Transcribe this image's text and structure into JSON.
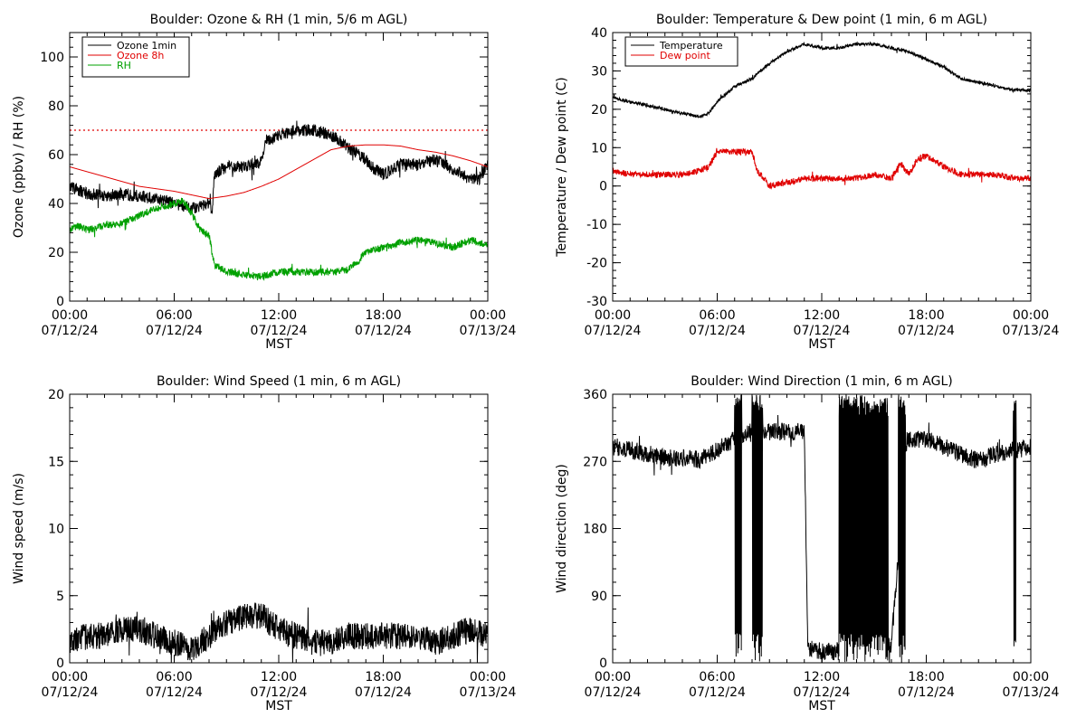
{
  "chart_data": [
    {
      "type": "line",
      "title": "Boulder: Ozone & RH (1 min, 5/6 m AGL)",
      "xlabel": "MST",
      "ylabel": "Ozone (ppbv) / RH (%)",
      "x_ticks": [
        [
          "00:00",
          "07/12/24"
        ],
        [
          "06:00",
          "07/12/24"
        ],
        [
          "12:00",
          "07/12/24"
        ],
        [
          "18:00",
          "07/12/24"
        ],
        [
          "00:00",
          "07/13/24"
        ]
      ],
      "xlim_hours": [
        0,
        24
      ],
      "ylim": [
        0,
        110
      ],
      "y_ticks": [
        0,
        20,
        40,
        60,
        80,
        100
      ],
      "legend_position": "top-left",
      "reference_line": {
        "y": 70,
        "color": "#e00000",
        "style": "dotted"
      },
      "series": [
        {
          "name": "Ozone 1min",
          "color": "#000000",
          "noise": 2.5,
          "points": [
            [
              0,
              47
            ],
            [
              1,
              44
            ],
            [
              2,
              43
            ],
            [
              3,
              44
            ],
            [
              4,
              43
            ],
            [
              5,
              42
            ],
            [
              6,
              40
            ],
            [
              7,
              38
            ],
            [
              8,
              40
            ],
            [
              8.2,
              37
            ],
            [
              8.3,
              52
            ],
            [
              9,
              55
            ],
            [
              10,
              55
            ],
            [
              11,
              57
            ],
            [
              11.3,
              66
            ],
            [
              12,
              68
            ],
            [
              13,
              70
            ],
            [
              14,
              70
            ],
            [
              15,
              68
            ],
            [
              16,
              63
            ],
            [
              17,
              58
            ],
            [
              17.5,
              54
            ],
            [
              18,
              52
            ],
            [
              19,
              56
            ],
            [
              20,
              56
            ],
            [
              21,
              58
            ],
            [
              22,
              54
            ],
            [
              23,
              50
            ],
            [
              23.5,
              50
            ],
            [
              24,
              56
            ]
          ]
        },
        {
          "name": "Ozone 8h",
          "color": "#e00000",
          "noise": 0,
          "points": [
            [
              0,
              55
            ],
            [
              1,
              53
            ],
            [
              2,
              51
            ],
            [
              3,
              49
            ],
            [
              4,
              47
            ],
            [
              5,
              46
            ],
            [
              6,
              45
            ],
            [
              7,
              43.5
            ],
            [
              8,
              42
            ],
            [
              9,
              43
            ],
            [
              10,
              44.5
            ],
            [
              11,
              47
            ],
            [
              12,
              50
            ],
            [
              13,
              54
            ],
            [
              14,
              58
            ],
            [
              15,
              62
            ],
            [
              16,
              63.5
            ],
            [
              17,
              64
            ],
            [
              18,
              64
            ],
            [
              19,
              63.5
            ],
            [
              20,
              62
            ],
            [
              21,
              61
            ],
            [
              22,
              59.5
            ],
            [
              23,
              57.5
            ],
            [
              24,
              55
            ]
          ]
        },
        {
          "name": "RH",
          "color": "#00a000",
          "noise": 1.5,
          "points": [
            [
              0,
              29
            ],
            [
              0.5,
              31
            ],
            [
              1,
              29
            ],
            [
              2,
              31
            ],
            [
              3,
              32
            ],
            [
              4,
              35
            ],
            [
              5,
              38
            ],
            [
              6,
              40
            ],
            [
              6.5,
              41
            ],
            [
              7,
              36
            ],
            [
              7.5,
              29
            ],
            [
              8,
              27
            ],
            [
              8.3,
              15
            ],
            [
              9,
              12
            ],
            [
              10,
              11
            ],
            [
              11,
              10
            ],
            [
              11.5,
              11
            ],
            [
              12,
              12
            ],
            [
              13,
              12
            ],
            [
              14,
              12
            ],
            [
              15,
              12
            ],
            [
              16,
              13
            ],
            [
              16.5,
              16
            ],
            [
              17,
              20
            ],
            [
              18,
              22
            ],
            [
              19,
              24
            ],
            [
              20,
              25
            ],
            [
              21,
              24
            ],
            [
              22,
              22
            ],
            [
              23,
              25
            ],
            [
              24,
              23
            ]
          ]
        }
      ]
    },
    {
      "type": "line",
      "title": "Boulder: Temperature & Dew point (1 min, 6 m AGL)",
      "xlabel": "MST",
      "ylabel": "Temperature / Dew point (C)",
      "x_ticks": [
        [
          "00:00",
          "07/12/24"
        ],
        [
          "06:00",
          "07/12/24"
        ],
        [
          "12:00",
          "07/12/24"
        ],
        [
          "18:00",
          "07/12/24"
        ],
        [
          "00:00",
          "07/13/24"
        ]
      ],
      "xlim_hours": [
        0,
        24
      ],
      "ylim": [
        -30,
        40
      ],
      "y_ticks": [
        -30,
        -20,
        -10,
        0,
        10,
        20,
        30,
        40
      ],
      "legend_position": "top-left",
      "series": [
        {
          "name": "Temperature",
          "color": "#000000",
          "noise": 0.4,
          "points": [
            [
              0,
              23
            ],
            [
              1,
              22
            ],
            [
              2,
              21
            ],
            [
              3,
              20
            ],
            [
              4,
              19
            ],
            [
              5,
              18
            ],
            [
              5.5,
              19
            ],
            [
              6,
              22
            ],
            [
              7,
              26
            ],
            [
              8,
              28
            ],
            [
              9,
              32
            ],
            [
              10,
              35
            ],
            [
              11,
              37
            ],
            [
              12,
              36
            ],
            [
              13,
              36
            ],
            [
              14,
              37
            ],
            [
              15,
              37
            ],
            [
              16,
              36
            ],
            [
              17,
              35
            ],
            [
              18,
              33
            ],
            [
              19,
              31
            ],
            [
              20,
              28
            ],
            [
              21,
              27
            ],
            [
              22,
              26
            ],
            [
              23,
              25
            ],
            [
              24,
              25
            ]
          ]
        },
        {
          "name": "Dew point",
          "color": "#e00000",
          "noise": 0.8,
          "points": [
            [
              0,
              4
            ],
            [
              1,
              3
            ],
            [
              2,
              3
            ],
            [
              3,
              3
            ],
            [
              4,
              3
            ],
            [
              5,
              4
            ],
            [
              5.5,
              5
            ],
            [
              6,
              9
            ],
            [
              7,
              9
            ],
            [
              8,
              9
            ],
            [
              8.3,
              4
            ],
            [
              9,
              0
            ],
            [
              10,
              1
            ],
            [
              11,
              2
            ],
            [
              12,
              2
            ],
            [
              13,
              2
            ],
            [
              14,
              2
            ],
            [
              15,
              3
            ],
            [
              16,
              2
            ],
            [
              16.5,
              6
            ],
            [
              17,
              3
            ],
            [
              17.5,
              7
            ],
            [
              18,
              8
            ],
            [
              19,
              5
            ],
            [
              20,
              3
            ],
            [
              21,
              3
            ],
            [
              22,
              3
            ],
            [
              23,
              2
            ],
            [
              24,
              2
            ]
          ]
        }
      ]
    },
    {
      "type": "line",
      "title": "Boulder: Wind Speed (1 min, 6 m AGL)",
      "xlabel": "MST",
      "ylabel": "Wind speed (m/s)",
      "x_ticks": [
        [
          "00:00",
          "07/12/24"
        ],
        [
          "06:00",
          "07/12/24"
        ],
        [
          "12:00",
          "07/12/24"
        ],
        [
          "18:00",
          "07/12/24"
        ],
        [
          "00:00",
          "07/13/24"
        ]
      ],
      "xlim_hours": [
        0,
        24
      ],
      "ylim": [
        0,
        20
      ],
      "y_ticks": [
        0,
        5,
        10,
        15,
        20
      ],
      "series": [
        {
          "name": "",
          "color": "#000000",
          "noise": 1.0,
          "points": [
            [
              0,
              1.5
            ],
            [
              1,
              2
            ],
            [
              2,
              2
            ],
            [
              3,
              2.5
            ],
            [
              4,
              2.5
            ],
            [
              5,
              2
            ],
            [
              6,
              1.5
            ],
            [
              7,
              1
            ],
            [
              8,
              2
            ],
            [
              9,
              3
            ],
            [
              10,
              3.5
            ],
            [
              11,
              3.5
            ],
            [
              12,
              2.5
            ],
            [
              13,
              2
            ],
            [
              14,
              1.5
            ],
            [
              15,
              1.5
            ],
            [
              16,
              2
            ],
            [
              17,
              2
            ],
            [
              18,
              2
            ],
            [
              19,
              2
            ],
            [
              20,
              2
            ],
            [
              21,
              1.5
            ],
            [
              22,
              2
            ],
            [
              23,
              2.5
            ],
            [
              24,
              2
            ]
          ]
        }
      ]
    },
    {
      "type": "line",
      "title": "Boulder: Wind Direction (1 min, 6 m AGL)",
      "xlabel": "MST",
      "ylabel": "Wind direction (deg)",
      "x_ticks": [
        [
          "00:00",
          "07/12/24"
        ],
        [
          "06:00",
          "07/12/24"
        ],
        [
          "12:00",
          "07/12/24"
        ],
        [
          "18:00",
          "07/12/24"
        ],
        [
          "00:00",
          "07/13/24"
        ]
      ],
      "xlim_hours": [
        0,
        24
      ],
      "ylim": [
        0,
        360
      ],
      "y_ticks": [
        0,
        90,
        180,
        270,
        360
      ],
      "series": [
        {
          "name": "",
          "color": "#000000",
          "noise": 12,
          "wrap_hours": [
            [
              7.0,
              7.4
            ],
            [
              8.0,
              8.6
            ],
            [
              13.0,
              15.8
            ],
            [
              16.4,
              16.8
            ],
            [
              23.0,
              23.15
            ]
          ],
          "points": [
            [
              0,
              290
            ],
            [
              1,
              285
            ],
            [
              2,
              280
            ],
            [
              3,
              275
            ],
            [
              4,
              275
            ],
            [
              5,
              272
            ],
            [
              6,
              285
            ],
            [
              7,
              300
            ],
            [
              8,
              310
            ],
            [
              9,
              310
            ],
            [
              10,
              310
            ],
            [
              11,
              310
            ],
            [
              11.2,
              20
            ],
            [
              12,
              15
            ],
            [
              13,
              15
            ],
            [
              14,
              15
            ],
            [
              15,
              20
            ],
            [
              16,
              25
            ],
            [
              16.9,
              300
            ],
            [
              17,
              300
            ],
            [
              18,
              300
            ],
            [
              19,
              290
            ],
            [
              20,
              280
            ],
            [
              21,
              270
            ],
            [
              22,
              280
            ],
            [
              23,
              285
            ],
            [
              24,
              290
            ]
          ]
        }
      ]
    }
  ]
}
